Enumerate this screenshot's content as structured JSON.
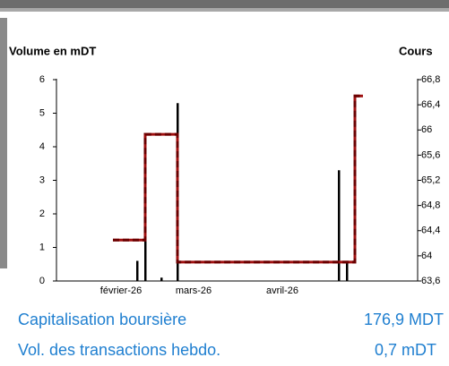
{
  "chart_data": {
    "type": "combo",
    "y_label": "Volume en mDT",
    "y2_label": "Cours",
    "categories": [
      null,
      null,
      null,
      null,
      null,
      null,
      null,
      null,
      "février-26",
      null,
      null,
      null,
      null,
      null,
      null,
      null,
      null,
      "mars-26",
      null,
      null,
      null,
      null,
      null,
      null,
      null,
      null,
      null,
      null,
      "avril-26",
      null,
      null,
      null,
      null,
      null,
      null,
      null,
      null,
      null,
      null,
      null,
      null,
      null,
      null,
      null,
      null
    ],
    "series": [
      {
        "type": "bar",
        "color": "#000000",
        "values": [
          null,
          null,
          null,
          null,
          null,
          null,
          null,
          null,
          null,
          null,
          0.6,
          3.7,
          null,
          0.1,
          null,
          5.3,
          null,
          null,
          null,
          null,
          null,
          null,
          null,
          null,
          null,
          null,
          null,
          null,
          null,
          null,
          null,
          null,
          null,
          null,
          null,
          3.3,
          0.6,
          null,
          null,
          null,
          null,
          null,
          null,
          null,
          null
        ]
      },
      {
        "type": "step",
        "axis": "y2",
        "color": "#a01010",
        "values": [
          null,
          null,
          null,
          null,
          null,
          null,
          null,
          64.25,
          64.25,
          64.25,
          64.25,
          65.93,
          65.93,
          65.93,
          65.93,
          63.9,
          63.9,
          63.9,
          63.9,
          63.9,
          63.9,
          63.9,
          63.9,
          63.9,
          63.9,
          63.9,
          63.9,
          63.9,
          63.9,
          63.9,
          63.9,
          63.9,
          63.9,
          63.9,
          63.9,
          63.9,
          63.9,
          66.54,
          66.54,
          null,
          null,
          null,
          null,
          null,
          null
        ]
      }
    ],
    "ylim": [
      0,
      6
    ],
    "yticks": [
      0,
      1,
      2,
      3,
      4,
      5,
      6
    ],
    "y2lim": [
      63.6,
      66.8
    ],
    "y2ticks": [
      {
        "value": 63.6,
        "label": "63,6"
      },
      64,
      {
        "value": 64.4,
        "label": "64,4"
      },
      {
        "value": 64.8,
        "label": "64,8"
      },
      {
        "value": 65.2,
        "label": "65,2"
      },
      {
        "value": 65.6,
        "label": "65,6"
      },
      66,
      {
        "value": 66.4,
        "label": "66,4"
      },
      {
        "value": 66.8,
        "label": "66,8"
      }
    ]
  },
  "summary": [
    {
      "label": "Capitalisation boursière",
      "value": "176,9 MDT"
    },
    {
      "label": "Vol. des transactions hebdo.",
      "value": "0,7 mDT"
    }
  ]
}
